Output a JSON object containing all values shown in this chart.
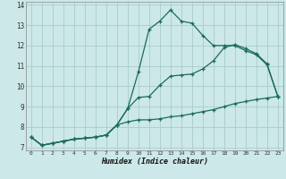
{
  "xlabel": "Humidex (Indice chaleur)",
  "bg_color": "#cce8e8",
  "grid_color": "#aacccc",
  "line_color": "#1a6b5a",
  "xlim": [
    -0.5,
    23.5
  ],
  "ylim": [
    6.85,
    14.15
  ],
  "xticks": [
    0,
    1,
    2,
    3,
    4,
    5,
    6,
    7,
    8,
    9,
    10,
    11,
    12,
    13,
    14,
    15,
    16,
    17,
    18,
    19,
    20,
    21,
    22,
    23
  ],
  "yticks": [
    7,
    8,
    9,
    10,
    11,
    12,
    13,
    14
  ],
  "line1_x": [
    0,
    1,
    2,
    3,
    4,
    5,
    6,
    7,
    8,
    9,
    10,
    11,
    12,
    13,
    14,
    15,
    16,
    17,
    18,
    19,
    20,
    21,
    22,
    23
  ],
  "line1_y": [
    7.5,
    7.1,
    7.2,
    7.3,
    7.4,
    7.45,
    7.5,
    7.6,
    8.1,
    8.9,
    10.7,
    12.8,
    13.2,
    13.75,
    13.2,
    13.1,
    12.5,
    12.0,
    12.0,
    12.0,
    11.75,
    11.55,
    11.05,
    9.5
  ],
  "line2_x": [
    0,
    1,
    2,
    3,
    4,
    5,
    6,
    7,
    8,
    9,
    10,
    11,
    12,
    13,
    14,
    15,
    16,
    17,
    18,
    19,
    20,
    21,
    22,
    23
  ],
  "line2_y": [
    7.5,
    7.1,
    7.2,
    7.3,
    7.4,
    7.45,
    7.5,
    7.6,
    8.1,
    8.9,
    9.45,
    9.5,
    10.05,
    10.5,
    10.55,
    10.6,
    10.85,
    11.25,
    11.9,
    12.05,
    11.85,
    11.6,
    11.1,
    9.5
  ],
  "line3_x": [
    0,
    1,
    2,
    3,
    4,
    5,
    6,
    7,
    8,
    9,
    10,
    11,
    12,
    13,
    14,
    15,
    16,
    17,
    18,
    19,
    20,
    21,
    22,
    23
  ],
  "line3_y": [
    7.5,
    7.1,
    7.2,
    7.3,
    7.4,
    7.45,
    7.5,
    7.6,
    8.1,
    8.25,
    8.35,
    8.35,
    8.4,
    8.5,
    8.55,
    8.65,
    8.75,
    8.85,
    9.0,
    9.15,
    9.25,
    9.35,
    9.42,
    9.5
  ]
}
